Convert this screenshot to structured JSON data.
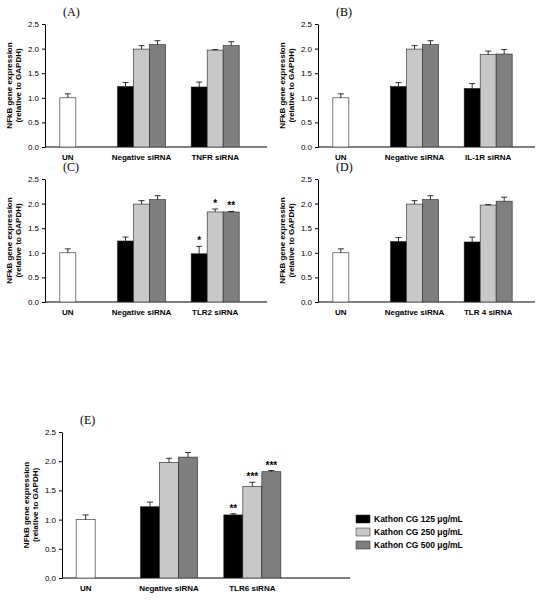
{
  "chart_data": [
    {
      "type": "bar",
      "title": "(A)",
      "y_label": [
        "NFkB gene expression",
        "(relative to GAPDH)"
      ],
      "categories": [
        "UN",
        "Negative siRNA",
        "TNFR siRNA"
      ],
      "ylim": [
        0,
        2.5
      ],
      "yticks": [
        {
          "value": 0,
          "label": "0.0"
        },
        0.5,
        {
          "value": 1,
          "label": "1.0"
        },
        1.5,
        {
          "value": 2,
          "label": "2.0"
        },
        2.5
      ],
      "series": [
        {
          "color": "#ffffff",
          "values": [
            1.0,
            null,
            null
          ],
          "errors": [
            0.08,
            null,
            null
          ]
        },
        {
          "color": "#000000",
          "values": [
            null,
            1.23,
            1.22
          ],
          "errors": [
            null,
            0.08,
            0.1
          ]
        },
        {
          "color": "#c8c8c8",
          "values": [
            null,
            1.99,
            1.97
          ],
          "errors": [
            null,
            0.07,
            0.01
          ]
        },
        {
          "color": "#7f7f7f",
          "values": [
            null,
            2.08,
            2.06
          ],
          "errors": [
            null,
            0.08,
            0.08
          ]
        }
      ]
    },
    {
      "type": "bar",
      "title": "(B)",
      "y_label": [
        "NFkB gene expression",
        "(relative to GAPDH)"
      ],
      "categories": [
        "UN",
        "Negative siRNA",
        "IL-1R siRNA"
      ],
      "ylim": [
        0,
        2.5
      ],
      "yticks": [
        {
          "value": 0,
          "label": "0.0"
        },
        0.5,
        {
          "value": 1,
          "label": "1.0"
        },
        1.5,
        {
          "value": 2,
          "label": "2.0"
        },
        2.5
      ],
      "series": [
        {
          "color": "#ffffff",
          "values": [
            1.0,
            null,
            null
          ],
          "errors": [
            0.08,
            null,
            null
          ]
        },
        {
          "color": "#000000",
          "values": [
            null,
            1.23,
            1.19
          ],
          "errors": [
            null,
            0.08,
            0.1
          ]
        },
        {
          "color": "#c8c8c8",
          "values": [
            null,
            1.99,
            1.88
          ],
          "errors": [
            null,
            0.07,
            0.07
          ]
        },
        {
          "color": "#7f7f7f",
          "values": [
            null,
            2.08,
            1.89
          ],
          "errors": [
            null,
            0.08,
            0.09
          ]
        }
      ]
    },
    {
      "type": "bar",
      "title": "(C)",
      "y_label": [
        "NFkB gene expression",
        "(relative to GAPDH)"
      ],
      "categories": [
        "UN",
        "Negative siRNA",
        "TLR2 siRNA"
      ],
      "ylim": [
        0,
        2.5
      ],
      "yticks": [
        {
          "value": 0,
          "label": "0.0"
        },
        0.5,
        {
          "value": 1,
          "label": "1.0"
        },
        1.5,
        {
          "value": 2,
          "label": "2.0"
        },
        2.5
      ],
      "series": [
        {
          "color": "#ffffff",
          "values": [
            1.0,
            null,
            null
          ],
          "errors": [
            0.08,
            null,
            null
          ]
        },
        {
          "color": "#000000",
          "values": [
            null,
            1.24,
            0.98
          ],
          "errors": [
            null,
            0.08,
            0.15
          ],
          "annotations": [
            null,
            null,
            "*"
          ]
        },
        {
          "color": "#c8c8c8",
          "values": [
            null,
            1.99,
            1.83
          ],
          "errors": [
            null,
            0.07,
            0.06
          ],
          "annotations": [
            null,
            null,
            "*"
          ]
        },
        {
          "color": "#7f7f7f",
          "values": [
            null,
            2.08,
            1.83
          ],
          "errors": [
            null,
            0.08,
            0.01
          ],
          "annotations": [
            null,
            null,
            "**"
          ]
        }
      ]
    },
    {
      "type": "bar",
      "title": "(D)",
      "y_label": [
        "NFkB gene expression",
        "(relative to GAPDH)"
      ],
      "categories": [
        "UN",
        "Negative siRNA",
        "TLR 4 siRNA"
      ],
      "ylim": [
        0,
        2.5
      ],
      "yticks": [
        {
          "value": 0,
          "label": "0.0"
        },
        0.5,
        {
          "value": 1,
          "label": "1.0"
        },
        1.5,
        {
          "value": 2,
          "label": "2.0"
        },
        2.5
      ],
      "series": [
        {
          "color": "#ffffff",
          "values": [
            1.0,
            null,
            null
          ],
          "errors": [
            0.08,
            null,
            null
          ]
        },
        {
          "color": "#000000",
          "values": [
            null,
            1.23,
            1.22
          ],
          "errors": [
            null,
            0.08,
            0.1
          ]
        },
        {
          "color": "#c8c8c8",
          "values": [
            null,
            1.99,
            1.97
          ],
          "errors": [
            null,
            0.07,
            0.01
          ]
        },
        {
          "color": "#7f7f7f",
          "values": [
            null,
            2.08,
            2.05
          ],
          "errors": [
            null,
            0.08,
            0.08
          ]
        }
      ]
    },
    {
      "type": "bar",
      "title": "(E)",
      "y_label": [
        "NFkB gene expression",
        "(relative to GAPDH)"
      ],
      "categories": [
        "UN",
        "Negative siRNA",
        "TLR6 siRNA"
      ],
      "ylim": [
        0,
        2.5
      ],
      "yticks": [
        {
          "value": 0,
          "label": "0.0"
        },
        0.5,
        {
          "value": 1,
          "label": "1.0"
        },
        1.5,
        {
          "value": 2,
          "label": "2.0"
        },
        2.5
      ],
      "legend": "right",
      "series": [
        {
          "color": "#ffffff",
          "values": [
            1.0,
            null,
            null
          ],
          "errors": [
            0.08,
            null,
            null
          ]
        },
        {
          "name": "Kathon CG 125 μg/mL",
          "color": "#000000",
          "values": [
            null,
            1.22,
            1.08
          ],
          "errors": [
            null,
            0.08,
            0.02
          ],
          "annotations": [
            null,
            null,
            "**"
          ]
        },
        {
          "name": "Kathon CG 250 μg/mL",
          "color": "#c8c8c8",
          "values": [
            null,
            1.98,
            1.57
          ],
          "errors": [
            null,
            0.07,
            0.07
          ],
          "annotations": [
            null,
            null,
            "***"
          ]
        },
        {
          "name": "Kathon CG 500 μg/mL",
          "color": "#7f7f7f",
          "values": [
            null,
            2.07,
            1.82
          ],
          "errors": [
            null,
            0.08,
            0.02
          ],
          "annotations": [
            null,
            null,
            "***"
          ]
        }
      ]
    }
  ]
}
